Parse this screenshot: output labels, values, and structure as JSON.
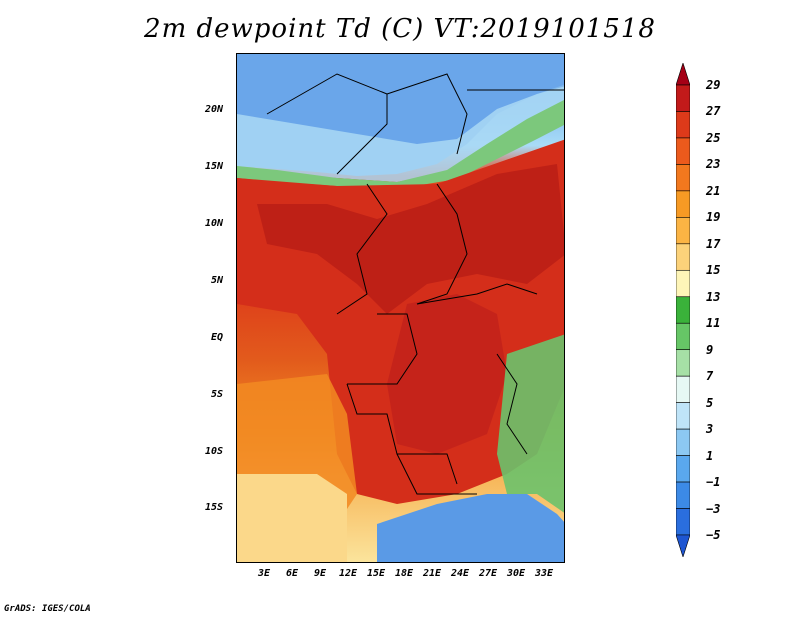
{
  "title": "2m dewpoint Td (C) VT:2019101518",
  "footer": "GrADS: IGES/COLA",
  "axes": {
    "lat_labels": [
      "20N",
      "15N",
      "10N",
      "5N",
      "EQ",
      "5S",
      "10S",
      "15S"
    ],
    "lon_labels": [
      "3E",
      "6E",
      "9E",
      "12E",
      "15E",
      "18E",
      "21E",
      "24E",
      "27E",
      "30E",
      "33E"
    ]
  },
  "colorbar": {
    "labels": [
      "29",
      "27",
      "25",
      "23",
      "21",
      "19",
      "17",
      "15",
      "13",
      "11",
      "9",
      "7",
      "5",
      "3",
      "1",
      "-1",
      "-3",
      "-5"
    ],
    "colors": [
      "#a50016",
      "#c21a1a",
      "#dd3a1a",
      "#ec5a1c",
      "#f2781e",
      "#f79a24",
      "#fbb444",
      "#fcd27a",
      "#fef5b8",
      "#3ab23a",
      "#66c666",
      "#a6e0a6",
      "#e6f8f4",
      "#bfe4f8",
      "#8cc8f2",
      "#5aa8ee",
      "#3c8ae6",
      "#2a6ede",
      "#1e56d2"
    ]
  },
  "chart_data": {
    "type": "heatmap",
    "title": "2m dewpoint Td (C) VT:2019101518",
    "variable": "2m dewpoint",
    "units": "C",
    "valid_time": "2019101518",
    "lon_ticks": [
      "3E",
      "6E",
      "9E",
      "12E",
      "15E",
      "18E",
      "21E",
      "24E",
      "27E",
      "30E",
      "33E"
    ],
    "lat_ticks": [
      "20N",
      "15N",
      "10N",
      "5N",
      "EQ",
      "5S",
      "10S",
      "15S"
    ],
    "color_levels": [
      -5,
      -3,
      -1,
      1,
      3,
      5,
      7,
      9,
      11,
      13,
      15,
      17,
      19,
      21,
      23,
      25,
      27,
      29
    ]
  }
}
